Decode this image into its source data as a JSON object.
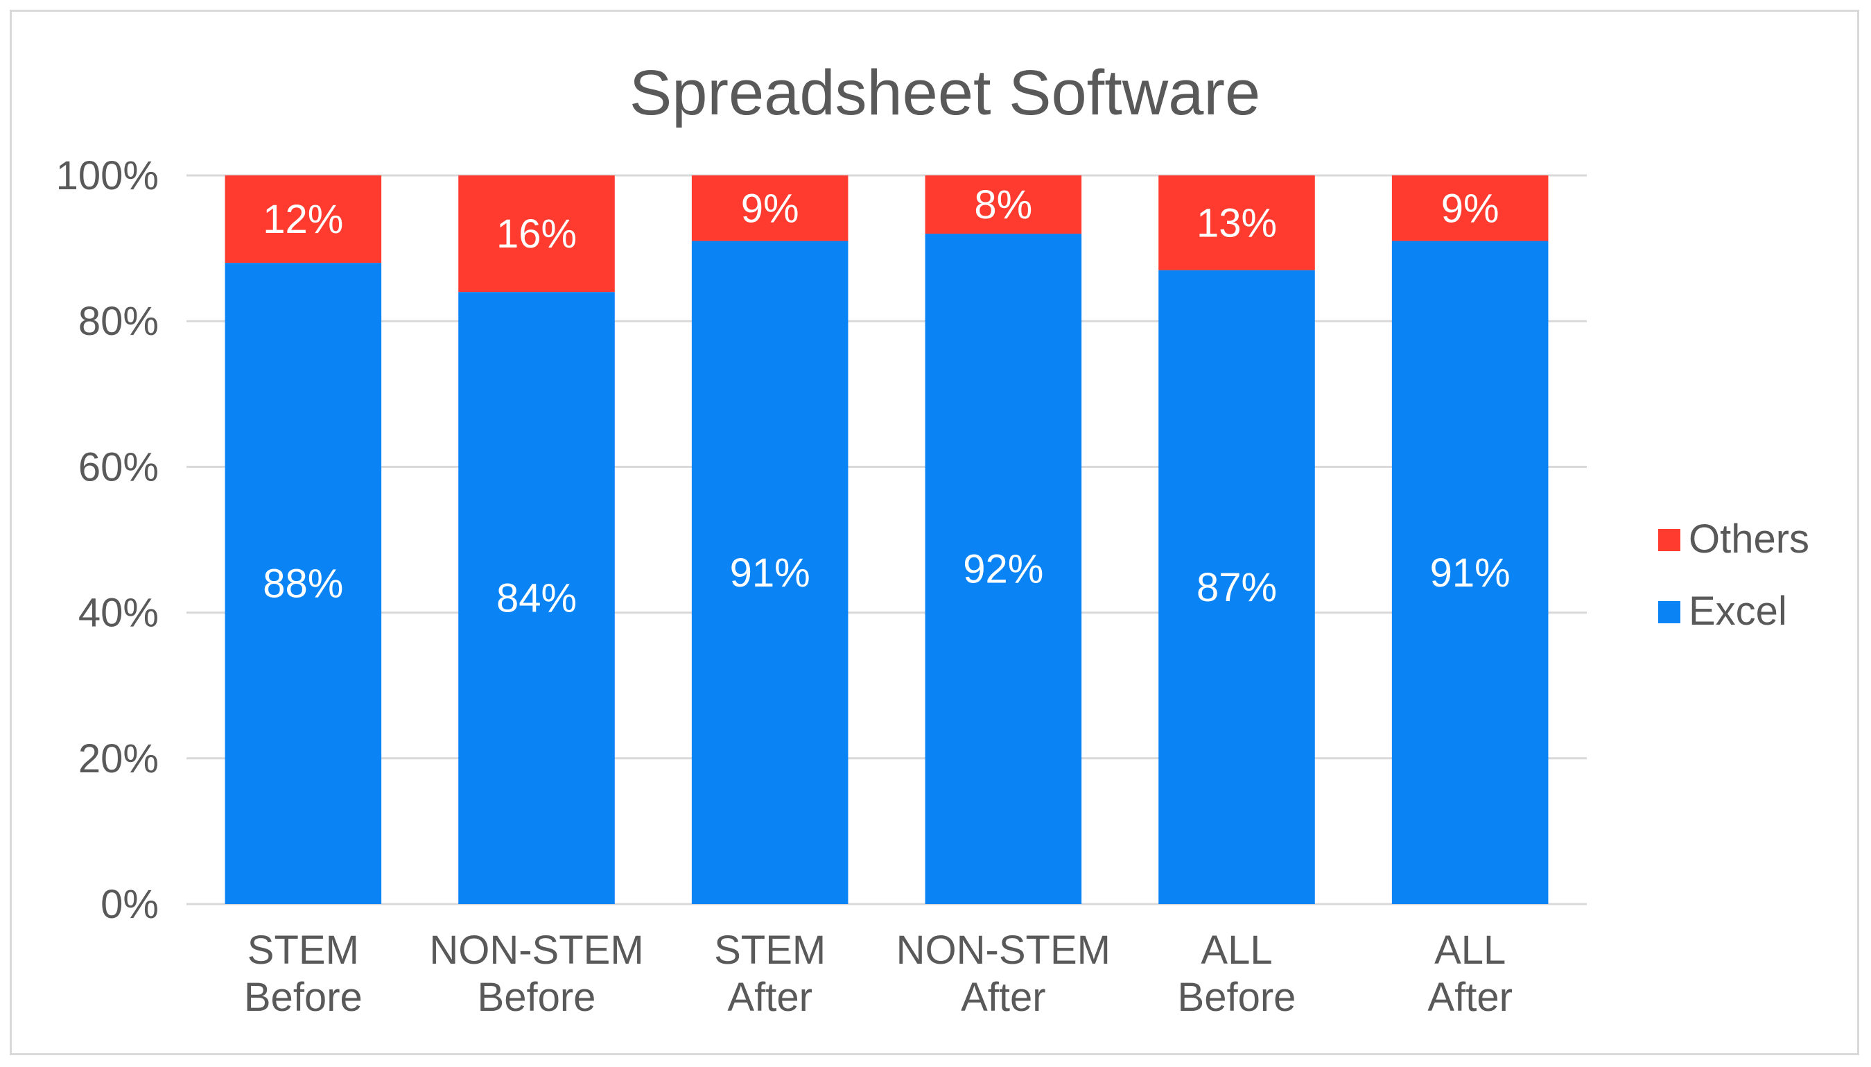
{
  "chart_data": {
    "type": "bar",
    "stacked": true,
    "title": "Spreadsheet Software",
    "xlabel": "",
    "ylabel": "",
    "ylim": [
      0,
      100
    ],
    "y_ticks": [
      "0%",
      "20%",
      "40%",
      "60%",
      "80%",
      "100%"
    ],
    "y_tick_values": [
      0,
      20,
      40,
      60,
      80,
      100
    ],
    "categories": [
      [
        "STEM",
        "Before"
      ],
      [
        "NON-STEM",
        "Before"
      ],
      [
        "STEM",
        "After"
      ],
      [
        "NON-STEM",
        "After"
      ],
      [
        "ALL",
        "Before"
      ],
      [
        "ALL",
        "After"
      ]
    ],
    "series": [
      {
        "name": "Excel",
        "color": "#0a84f5",
        "values": [
          88,
          84,
          91,
          92,
          87,
          91
        ],
        "labels": [
          "88%",
          "84%",
          "91%",
          "92%",
          "87%",
          "91%"
        ]
      },
      {
        "name": "Others",
        "color": "#ff3b2f",
        "values": [
          12,
          16,
          9,
          8,
          13,
          9
        ],
        "labels": [
          "12%",
          "16%",
          "9%",
          "8%",
          "13%",
          "9%"
        ]
      }
    ],
    "legend": {
      "position": "right",
      "order": [
        "Others",
        "Excel"
      ]
    },
    "grid": true,
    "colors": {
      "grid": "#d9d9d9",
      "text": "#595959",
      "label": "#ffffff"
    }
  }
}
